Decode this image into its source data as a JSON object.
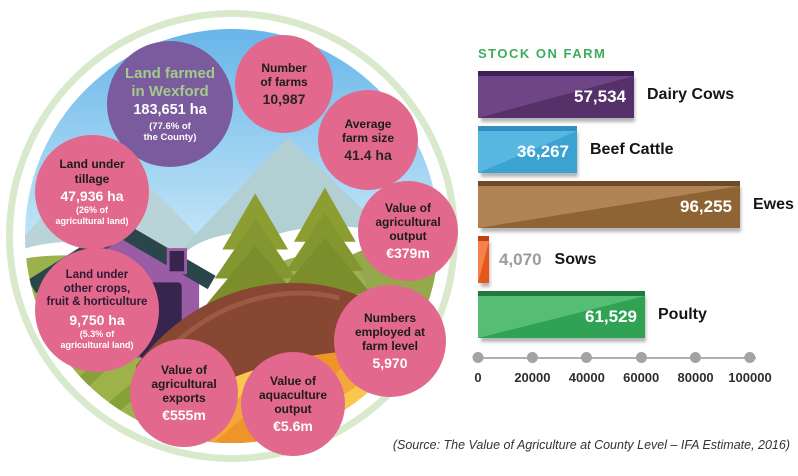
{
  "scene": {
    "bubbles": {
      "land_farmed": {
        "title": "Land farmed\nin Wexford",
        "value": "183,651 ha",
        "note": "(77.6% of\nthe County)"
      },
      "number_of_farms": {
        "title": "Number\nof farms",
        "value": "10,987"
      },
      "average_farm_size": {
        "title": "Average\nfarm size",
        "value": "41.4 ha"
      },
      "land_under_tillage": {
        "title": "Land under\ntillage",
        "value": "47,936 ha",
        "note": "(26% of\nagricultural land)"
      },
      "land_other_crops": {
        "title": "Land under\nother crops,\nfruit & horticulture",
        "value": "9,750 ha",
        "note": "(5.3% of\nagricultural land)"
      },
      "value_ag_exports": {
        "title": "Value of\nagricultural\nexports",
        "value": "€555m"
      },
      "value_aquaculture": {
        "title": "Value of\naquaculture\noutput",
        "value": "€5.6m"
      },
      "numbers_employed": {
        "title": "Numbers\nemployed at\nfarm level",
        "value": "5,970"
      },
      "value_ag_output": {
        "title": "Value of\nagricultural\noutput",
        "value": "€379m"
      }
    }
  },
  "chart_data": {
    "type": "bar",
    "orientation": "horizontal",
    "title": "STOCK ON FARM",
    "categories": [
      "Dairy Cows",
      "Beef Cattle",
      "Ewes",
      "Sows",
      "Poulty"
    ],
    "values": [
      57534,
      36267,
      96255,
      4070,
      61529
    ],
    "value_labels": [
      "57,534",
      "36,267",
      "96,255",
      "4,070",
      "61,529"
    ],
    "series_colors": [
      "#5b3373",
      "#3fa8d6",
      "#a2703f",
      "#ee5c1e",
      "#3bb065"
    ],
    "title_color": "#3bae5c",
    "xlim": [
      0,
      100000
    ],
    "x_ticks": [
      "0",
      "20000",
      "40000",
      "60000",
      "80000",
      "100000"
    ],
    "grid": false,
    "legend": "none"
  },
  "source_note": "(Source: The Value of Agriculture at County Level – IFA Estimate, 2016)"
}
